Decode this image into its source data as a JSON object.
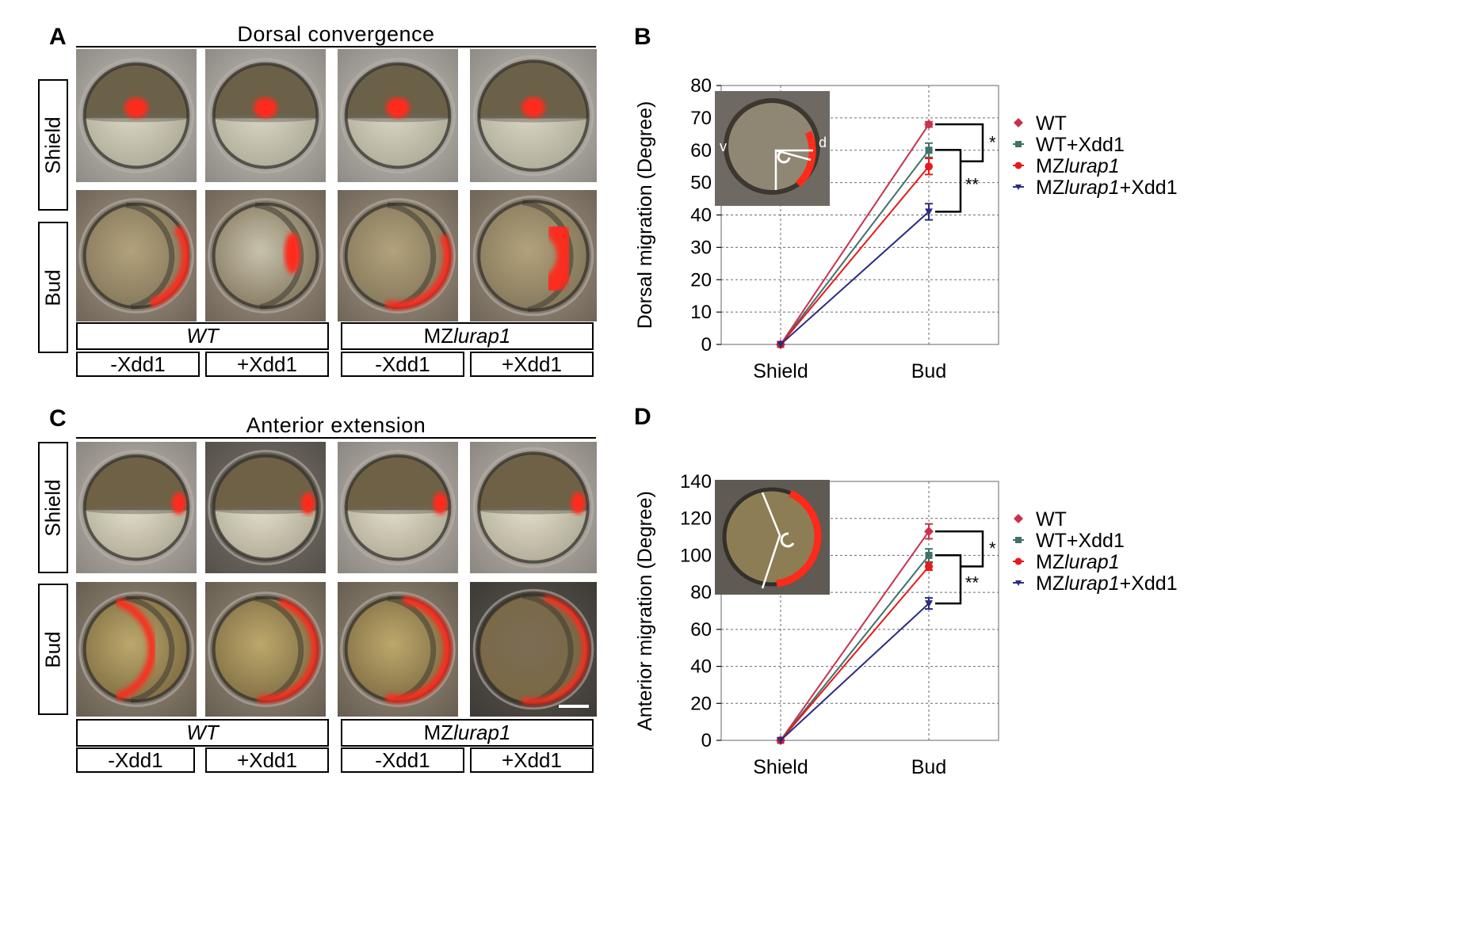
{
  "figure": {
    "A": {
      "letter": "A",
      "title": "Dorsal convergence",
      "rows": [
        "Shield",
        "Bud"
      ],
      "groups": [
        {
          "prefix": "",
          "name": "WT"
        },
        {
          "prefix": "MZ",
          "name": "lurap1"
        }
      ],
      "conditions": [
        "-Xdd1",
        "+Xdd1",
        "-Xdd1",
        "+Xdd1"
      ]
    },
    "C": {
      "letter": "C",
      "title": "Anterior extension",
      "rows": [
        "Shield",
        "Bud"
      ],
      "groups": [
        {
          "prefix": "",
          "name": "WT"
        },
        {
          "prefix": "MZ",
          "name": "lurap1"
        }
      ],
      "conditions": [
        "-Xdd1",
        "+Xdd1",
        "-Xdd1",
        "+Xdd1"
      ]
    }
  },
  "chart_data": [
    {
      "panel": "B",
      "type": "line",
      "ylabel": "Dorsal migration (Degree)",
      "categories": [
        "Shield",
        "Bud"
      ],
      "ylim": [
        0,
        80
      ],
      "yticks": [
        0,
        10,
        20,
        30,
        40,
        50,
        60,
        70,
        80
      ],
      "grid": true,
      "legend_position": "right",
      "series": [
        {
          "name": "WT",
          "values": [
            0,
            68
          ],
          "error": [
            0,
            0.8
          ],
          "color": "#c8324e",
          "marker": "diamond"
        },
        {
          "name": "WT+Xdd1",
          "values": [
            0,
            60
          ],
          "error": [
            0,
            2.2
          ],
          "color": "#3f7269",
          "marker": "square"
        },
        {
          "name": "MZlurap1",
          "values": [
            0,
            55
          ],
          "error": [
            0,
            2.5
          ],
          "color": "#e8191b",
          "marker": "circle"
        },
        {
          "name": "MZlurap1+Xdd1",
          "values": [
            0,
            41
          ],
          "error": [
            0,
            2.5
          ],
          "color": "#2b2b83",
          "marker": "triangle-down"
        }
      ],
      "legend": [
        {
          "prefix": "WT",
          "italic": "",
          "suffix": ""
        },
        {
          "prefix": "WT+Xdd1",
          "italic": "",
          "suffix": ""
        },
        {
          "prefix": "MZ",
          "italic": "lurap1",
          "suffix": ""
        },
        {
          "prefix": "MZ",
          "italic": "lurap1",
          "suffix": "+Xdd1"
        }
      ],
      "significance": [
        "*",
        "**"
      ],
      "inset_labels": [
        "v",
        "d"
      ]
    },
    {
      "panel": "D",
      "type": "line",
      "ylabel": "Anterior migration (Degree)",
      "categories": [
        "Shield",
        "Bud"
      ],
      "ylim": [
        0,
        140
      ],
      "yticks": [
        0,
        20,
        40,
        60,
        80,
        100,
        120,
        140
      ],
      "grid": true,
      "legend_position": "right",
      "series": [
        {
          "name": "WT",
          "values": [
            0,
            113
          ],
          "error": [
            0,
            4
          ],
          "color": "#c8324e",
          "marker": "diamond"
        },
        {
          "name": "WT+Xdd1",
          "values": [
            0,
            100
          ],
          "error": [
            0,
            3.5
          ],
          "color": "#3f7269",
          "marker": "square"
        },
        {
          "name": "MZlurap1",
          "values": [
            0,
            94
          ],
          "error": [
            0,
            2
          ],
          "color": "#e8191b",
          "marker": "circle"
        },
        {
          "name": "MZlurap1+Xdd1",
          "values": [
            0,
            74
          ],
          "error": [
            0,
            3
          ],
          "color": "#2b2b83",
          "marker": "triangle-down"
        }
      ],
      "legend": [
        {
          "prefix": "WT",
          "italic": "",
          "suffix": ""
        },
        {
          "prefix": "WT+Xdd1",
          "italic": "",
          "suffix": ""
        },
        {
          "prefix": "MZ",
          "italic": "lurap1",
          "suffix": ""
        },
        {
          "prefix": "MZ",
          "italic": "lurap1",
          "suffix": "+Xdd1"
        }
      ],
      "significance": [
        "*",
        "**"
      ],
      "inset_labels": []
    }
  ]
}
